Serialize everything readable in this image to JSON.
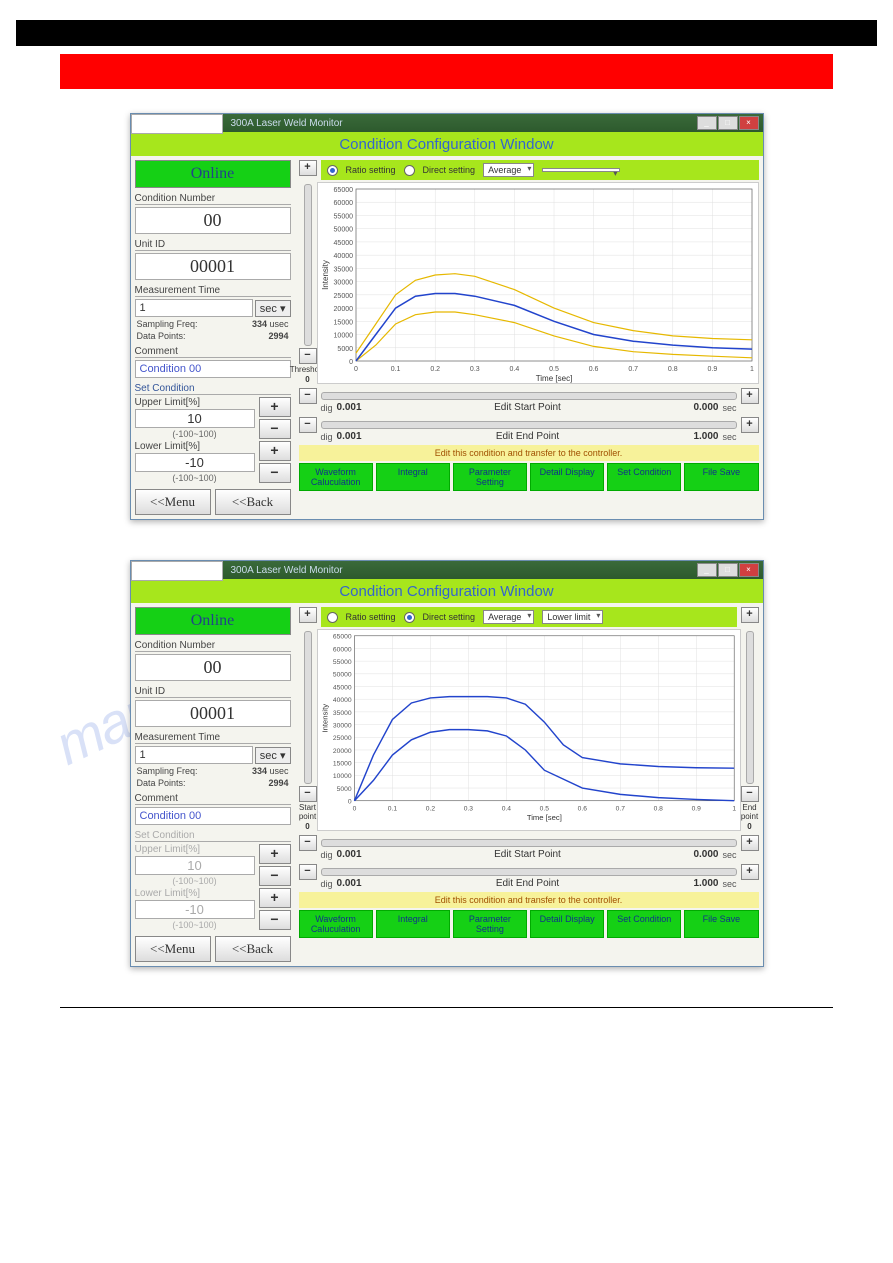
{
  "titlebar": {
    "title": "300A Laser Weld Monitor"
  },
  "header": {
    "title": "Condition Configuration Window"
  },
  "left": {
    "online": "Online",
    "cond_num_label": "Condition Number",
    "cond_num": "00",
    "unit_id_label": "Unit ID",
    "unit_id": "00001",
    "meas_time_label": "Measurement Time",
    "meas_time_val": "1",
    "meas_time_unit": "sec",
    "samp_freq_label": "Sampling Freq:",
    "samp_freq": "334",
    "samp_freq_unit": "usec",
    "data_pts_label": "Data Points:",
    "data_pts": "2994",
    "comment_label": "Comment",
    "cond_name": "Condition 00",
    "set_cond_label": "Set Condition",
    "upper_label": "Upper Limit[%]",
    "upper_val": "10",
    "lower_label": "Lower Limit[%]",
    "lower_val": "-10",
    "range": "(-100~100)",
    "menu": "<<Menu",
    "back": "<<Back"
  },
  "right1": {
    "ratio": "Ratio setting",
    "direct": "Direct setting",
    "avg": "Average",
    "dd2": "",
    "threshold_label": "Threshold",
    "threshold_val": "0",
    "dig_label": "dig",
    "dig_val": "0.001",
    "start_label": "Edit Start Point",
    "start_val": "0.000",
    "end_label": "Edit End Point",
    "end_val": "1.000",
    "sec": "sec",
    "yellow": "Edit this condition and transfer to the controller.",
    "btns": [
      "Waveform Caluculation",
      "Integral",
      "Parameter Setting",
      "Detail Display",
      "Set Condition",
      "File Save"
    ]
  },
  "right2": {
    "ratio": "Ratio setting",
    "direct": "Direct setting",
    "avg": "Average",
    "dd2": "Lower limit",
    "start_pt_label": "Start point",
    "start_pt_val": "0",
    "end_pt_label": "End point",
    "end_pt_val": "0"
  },
  "chart": {
    "type": "line",
    "xlabel": "Time [sec]",
    "ylabel": "Intensity",
    "xlim": [
      0,
      1.0
    ],
    "ylim": [
      0,
      65000
    ],
    "xticks": [
      0,
      0.1,
      0.2,
      0.3,
      0.4,
      0.5,
      0.6,
      0.7,
      0.8,
      0.9,
      1.0
    ],
    "yticks": [
      0,
      5000,
      10000,
      15000,
      20000,
      25000,
      30000,
      35000,
      40000,
      45000,
      50000,
      55000,
      60000,
      65000
    ],
    "bg": "#ffffff",
    "grid_color": "#e0e0e0",
    "axis_color": "#666666",
    "label_fontsize": 8,
    "series1": {
      "name": "blue-line",
      "color": "#2244cc",
      "width": 1.5,
      "x": [
        0,
        0.05,
        0.1,
        0.15,
        0.2,
        0.25,
        0.3,
        0.4,
        0.5,
        0.6,
        0.7,
        0.8,
        0.9,
        1.0
      ],
      "y": [
        0,
        10000,
        20000,
        24500,
        25500,
        25500,
        24500,
        21000,
        15000,
        10000,
        7500,
        6000,
        5000,
        4500
      ]
    },
    "series2_upper": {
      "name": "upper-yellow",
      "color": "#e6b800",
      "width": 1.2,
      "x": [
        0,
        0.05,
        0.1,
        0.15,
        0.2,
        0.25,
        0.3,
        0.4,
        0.5,
        0.6,
        0.7,
        0.8,
        0.9,
        1.0
      ],
      "y": [
        3000,
        14000,
        25000,
        30500,
        32500,
        33000,
        32000,
        27000,
        20000,
        14500,
        11500,
        9500,
        8500,
        8000
      ]
    },
    "series2_lower": {
      "name": "lower-yellow",
      "color": "#e6b800",
      "width": 1.2,
      "x": [
        0,
        0.05,
        0.1,
        0.15,
        0.2,
        0.25,
        0.3,
        0.4,
        0.5,
        0.6,
        0.7,
        0.8,
        0.9,
        1.0
      ],
      "y": [
        0,
        6000,
        14000,
        17500,
        18500,
        18500,
        17500,
        14500,
        9500,
        5500,
        3500,
        2500,
        1800,
        1200
      ]
    }
  },
  "chart2": {
    "series_upper": {
      "color": "#2244cc",
      "x": [
        0,
        0.05,
        0.1,
        0.15,
        0.2,
        0.25,
        0.3,
        0.35,
        0.4,
        0.45,
        0.5,
        0.55,
        0.6,
        0.7,
        0.8,
        0.9,
        1.0
      ],
      "y": [
        0,
        18000,
        32000,
        38500,
        40500,
        41000,
        41000,
        41000,
        40500,
        38000,
        31000,
        22000,
        17000,
        14500,
        13500,
        13000,
        12800
      ]
    },
    "series_lower": {
      "color": "#2244cc",
      "x": [
        0,
        0.05,
        0.1,
        0.15,
        0.2,
        0.25,
        0.3,
        0.35,
        0.4,
        0.45,
        0.5,
        0.6,
        0.7,
        0.8,
        0.9,
        1.0
      ],
      "y": [
        0,
        8000,
        18000,
        24000,
        27000,
        28000,
        28000,
        27500,
        25500,
        20000,
        12000,
        5000,
        2500,
        1200,
        500,
        0
      ]
    }
  },
  "watermark": "manualshive.com"
}
